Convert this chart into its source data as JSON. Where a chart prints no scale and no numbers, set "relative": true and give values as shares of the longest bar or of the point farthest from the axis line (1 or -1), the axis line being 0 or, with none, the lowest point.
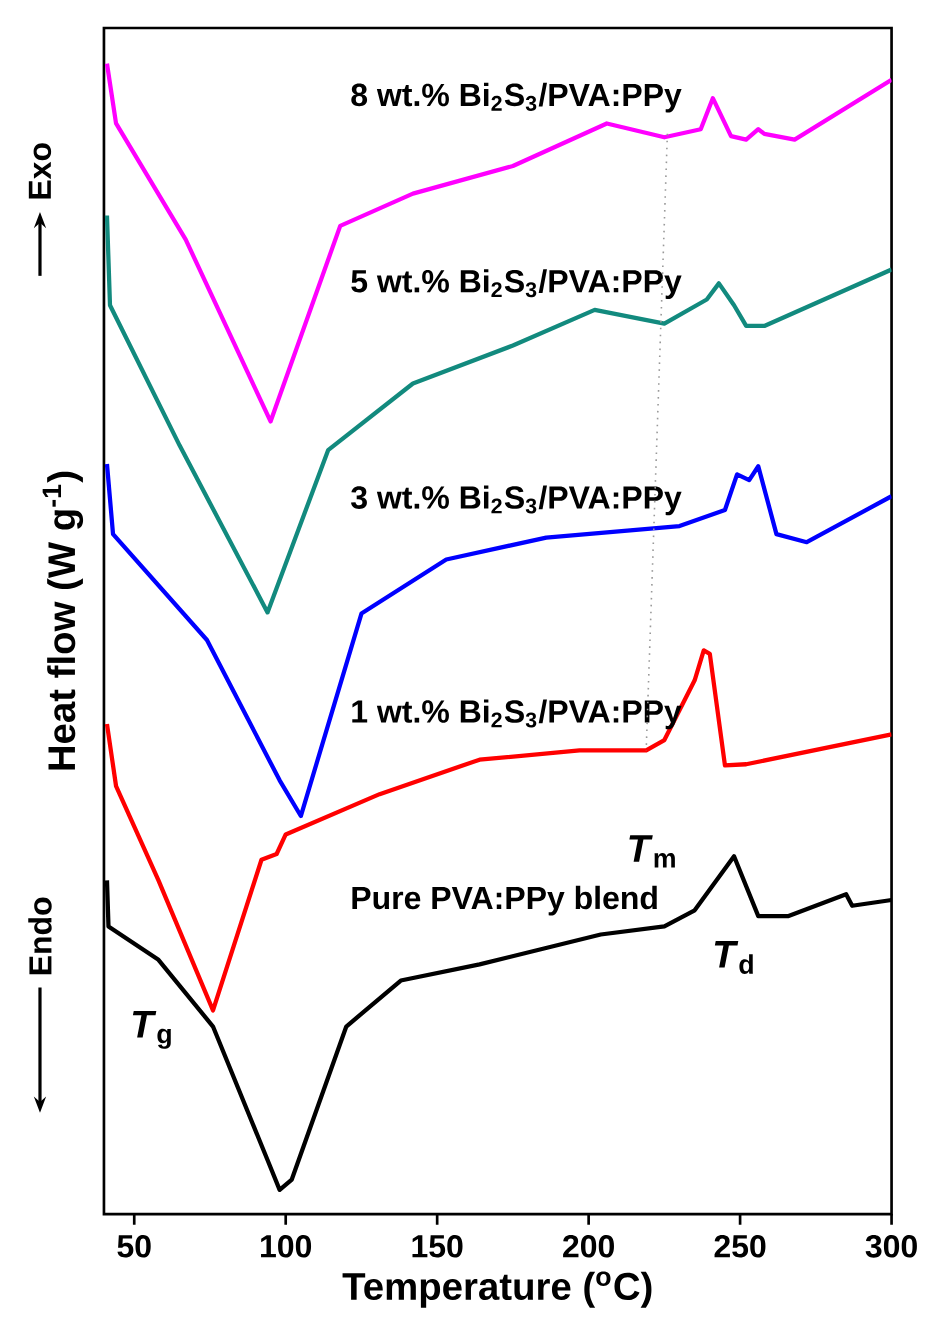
{
  "chart_data": {
    "type": "line",
    "relative": true,
    "xlabel": "Temperature ($^{o}$C)",
    "ylabel": "Heat flow (W g$^{-1}$)",
    "xlim": [
      40,
      300
    ],
    "xticks": [
      50,
      100,
      150,
      200,
      250,
      300
    ],
    "tick_labels": "x",
    "series": [
      {
        "name": "8 wt.% Bi$_{2}$S$_{3}$/PVA:PPy",
        "color": "#ff00ff",
        "x": [
          41,
          44,
          67,
          95,
          118,
          142,
          175,
          206,
          225,
          237,
          241,
          247,
          252,
          256,
          258,
          268,
          300
        ],
        "values": [
          1.0,
          0.948,
          0.847,
          0.689,
          0.859,
          0.887,
          0.911,
          0.948,
          0.936,
          0.943,
          0.97,
          0.937,
          0.934,
          0.943,
          0.939,
          0.934,
          0.986
        ]
      },
      {
        "name": "5 wt.% Bi$_{2}$S$_{3}$/PVA:PPy",
        "color": "#128a7e",
        "x": [
          41,
          42,
          65,
          94,
          114,
          142,
          175,
          202,
          225,
          239,
          243,
          248,
          252,
          258,
          300
        ],
        "values": [
          0.868,
          0.79,
          0.668,
          0.523,
          0.664,
          0.722,
          0.755,
          0.786,
          0.774,
          0.795,
          0.809,
          0.79,
          0.772,
          0.772,
          0.821
        ]
      },
      {
        "name": "3 wt.% Bi$_{2}$S$_{3}$/PVA:PPy",
        "color": "#0000ff",
        "x": [
          41,
          43,
          74,
          98,
          105,
          125,
          153,
          186,
          230,
          245,
          249,
          253,
          256,
          262,
          272,
          300
        ],
        "values": [
          0.652,
          0.591,
          0.499,
          0.377,
          0.346,
          0.522,
          0.569,
          0.588,
          0.598,
          0.612,
          0.643,
          0.638,
          0.65,
          0.591,
          0.584,
          0.624
        ]
      },
      {
        "name": "1 wt.% Bi$_{2}$S$_{3}$/PVA:PPy",
        "color": "#ff0000",
        "x": [
          41,
          44,
          58,
          76,
          92,
          97,
          100,
          131,
          164,
          197,
          219,
          225,
          235,
          238,
          240,
          245,
          252,
          300
        ],
        "values": [
          0.426,
          0.372,
          0.29,
          0.177,
          0.308,
          0.313,
          0.33,
          0.365,
          0.395,
          0.403,
          0.403,
          0.412,
          0.464,
          0.49,
          0.487,
          0.39,
          0.391,
          0.417
        ]
      },
      {
        "name": "Pure PVA:PPy blend",
        "color": "#000000",
        "x": [
          41,
          41.5,
          58,
          76,
          94,
          98,
          102,
          120,
          138,
          164,
          204,
          225,
          235,
          248,
          256,
          266,
          285,
          287,
          300
        ],
        "values": [
          0.29,
          0.25,
          0.221,
          0.163,
          0.047,
          0.021,
          0.03,
          0.163,
          0.203,
          0.217,
          0.243,
          0.25,
          0.264,
          0.311,
          0.259,
          0.259,
          0.278,
          0.268,
          0.273
        ]
      },
      {
        "color": "#999999",
        "line_style": "dotted",
        "x": [
          226,
          219
        ],
        "values": [
          0.939,
          0.403
        ]
      }
    ],
    "annotations": [
      "Exo",
      "Endo",
      {
        "text": "*T*$_{g}$",
        "x": 70,
        "y": 0.19
      },
      {
        "text": "*T*$_{m}$",
        "x": 221,
        "y": 0.403
      },
      {
        "text": "*T*$_{d}$",
        "x": 248,
        "y": 0.311
      }
    ]
  }
}
